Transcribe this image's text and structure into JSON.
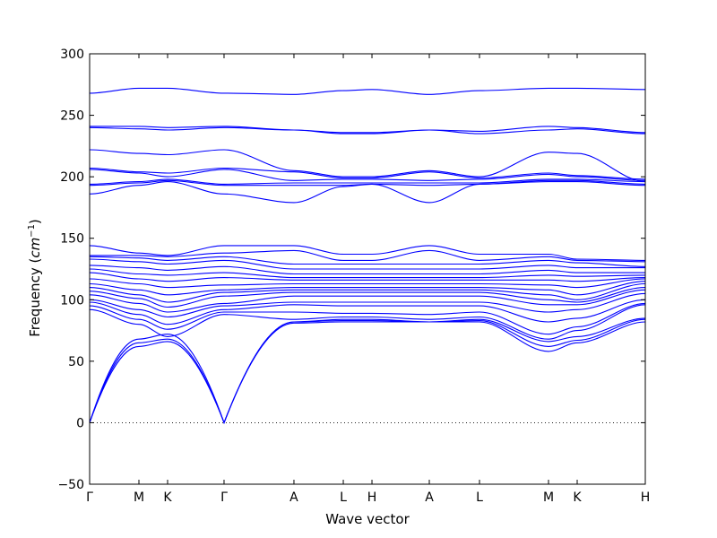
{
  "chart_data": {
    "type": "line",
    "xlabel": "Wave vector",
    "ylabel_text": "Frequency (",
    "ylabel_unit": "cm",
    "ylabel_exp": "−1",
    "ylabel_close": ")",
    "ylim": [
      -50,
      300
    ],
    "yticks": [
      -50,
      0,
      50,
      100,
      150,
      200,
      250,
      300
    ],
    "grid": false,
    "zero_line": true,
    "line_color": "#0000ff",
    "x_points": [
      {
        "label": "Γ",
        "x": 0.0
      },
      {
        "label": "M",
        "x": 0.0887
      },
      {
        "label": "K",
        "x": 0.1403
      },
      {
        "label": "Γ",
        "x": 0.2419
      },
      {
        "label": "A",
        "x": 0.3677
      },
      {
        "label": "L",
        "x": 0.4565
      },
      {
        "label": "H",
        "x": 0.5081
      },
      {
        "label": "A",
        "x": 0.6113
      },
      {
        "label": "L",
        "x": 0.7016
      },
      {
        "label": "M",
        "x": 0.8258
      },
      {
        "label": "K",
        "x": 0.8774
      },
      {
        "label": "H",
        "x": 1.0
      }
    ],
    "series": [
      {
        "values": [
          0,
          62,
          66,
          0,
          81,
          82,
          82,
          82,
          82,
          58,
          65,
          82
        ]
      },
      {
        "values": [
          0,
          65,
          68,
          0,
          82,
          83,
          83,
          82,
          83,
          62,
          67,
          84
        ]
      },
      {
        "values": [
          0,
          68,
          72,
          0,
          82,
          84,
          84,
          82,
          84,
          66,
          70,
          85
        ]
      },
      {
        "values": [
          92,
          80,
          70,
          88,
          84,
          86,
          86,
          84,
          86,
          68,
          75,
          96
        ]
      },
      {
        "values": [
          95,
          84,
          76,
          90,
          90,
          89,
          89,
          88,
          90,
          72,
          78,
          97
        ]
      },
      {
        "values": [
          98,
          88,
          80,
          92,
          96,
          95,
          95,
          95,
          95,
          82,
          85,
          100
        ]
      },
      {
        "values": [
          100,
          92,
          86,
          95,
          98,
          98,
          98,
          98,
          98,
          90,
          92,
          105
        ]
      },
      {
        "values": [
          104,
          97,
          90,
          97,
          103,
          103,
          103,
          103,
          103,
          96,
          96,
          108
        ]
      },
      {
        "values": [
          107,
          101,
          94,
          103,
          106,
          106,
          106,
          106,
          106,
          100,
          98,
          110
        ]
      },
      {
        "values": [
          110,
          104,
          98,
          106,
          108,
          108,
          108,
          108,
          108,
          104,
          100,
          113
        ]
      },
      {
        "values": [
          113,
          108,
          104,
          108,
          110,
          110,
          110,
          110,
          110,
          108,
          104,
          115
        ]
      },
      {
        "values": [
          117,
          113,
          110,
          112,
          113,
          113,
          113,
          113,
          113,
          112,
          110,
          117
        ]
      },
      {
        "values": [
          122,
          117,
          115,
          118,
          116,
          116,
          116,
          116,
          116,
          116,
          115,
          118
        ]
      },
      {
        "values": [
          125,
          121,
          120,
          122,
          118,
          118,
          118,
          118,
          118,
          120,
          119,
          120
        ]
      },
      {
        "values": [
          128,
          126,
          124,
          127,
          121,
          121,
          121,
          121,
          121,
          124,
          122,
          122
        ]
      },
      {
        "values": [
          133,
          131,
          129,
          132,
          125,
          125,
          125,
          125,
          125,
          128,
          126,
          126
        ]
      },
      {
        "values": [
          135,
          134,
          132,
          135,
          129,
          129,
          129,
          129,
          129,
          132,
          130,
          127
        ]
      },
      {
        "values": [
          136,
          136,
          135,
          138,
          140,
          132,
          132,
          140,
          132,
          135,
          132,
          131
        ]
      },
      {
        "values": [
          144,
          138,
          136,
          144,
          144,
          137,
          137,
          144,
          137,
          137,
          133,
          132
        ]
      },
      {
        "values": [
          186,
          193,
          196,
          186,
          179,
          192,
          194,
          179,
          194,
          196,
          196,
          193
        ]
      },
      {
        "values": [
          193,
          195,
          197,
          193,
          193,
          193,
          194,
          193,
          194,
          197,
          197,
          194
        ]
      },
      {
        "values": [
          194,
          196,
          198,
          194,
          195,
          195,
          195,
          195,
          195,
          198,
          198,
          196
        ]
      },
      {
        "values": [
          206,
          203,
          200,
          206,
          197,
          198,
          198,
          197,
          198,
          202,
          200,
          197
        ]
      },
      {
        "values": [
          207,
          204,
          203,
          207,
          204,
          199,
          199,
          204,
          199,
          203,
          201,
          198
        ]
      },
      {
        "values": [
          222,
          219,
          218,
          222,
          205,
          200,
          200,
          205,
          200,
          220,
          219,
          196
        ]
      },
      {
        "values": [
          240,
          239,
          238,
          240,
          238,
          235,
          235,
          238,
          235,
          238,
          239,
          235
        ]
      },
      {
        "values": [
          241,
          241,
          240,
          241,
          238,
          236,
          236,
          238,
          237,
          241,
          240,
          236
        ]
      },
      {
        "values": [
          268,
          272,
          272,
          268,
          267,
          270,
          271,
          267,
          270,
          272,
          272,
          271
        ]
      }
    ]
  }
}
